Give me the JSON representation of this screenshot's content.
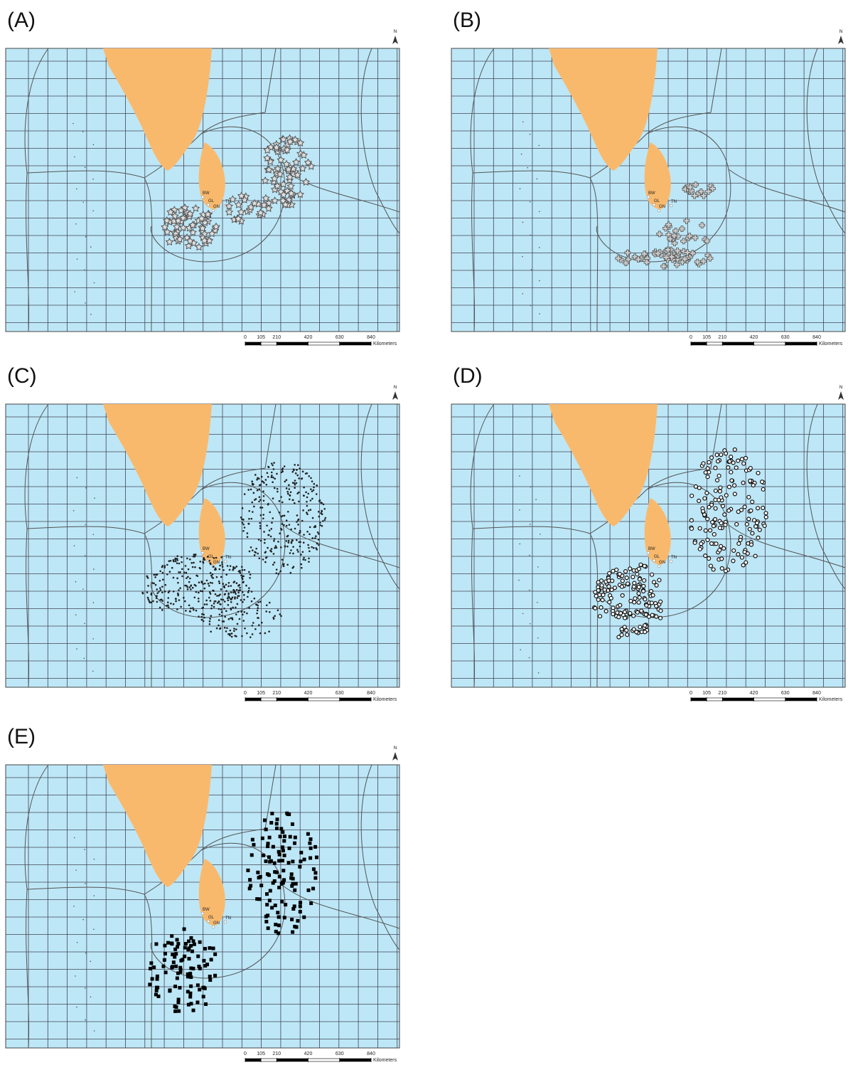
{
  "panels": [
    {
      "label": "(A)"
    },
    {
      "label": "(B)"
    },
    {
      "label": "(C)"
    },
    {
      "label": "(D)"
    },
    {
      "label": "(E)"
    }
  ],
  "north": "N",
  "sites": [
    "BW",
    "GL",
    "GN",
    "TN"
  ],
  "scale": {
    "ticks": [
      0,
      105,
      210,
      420,
      630,
      840
    ],
    "unit": "Kilometers"
  }
}
